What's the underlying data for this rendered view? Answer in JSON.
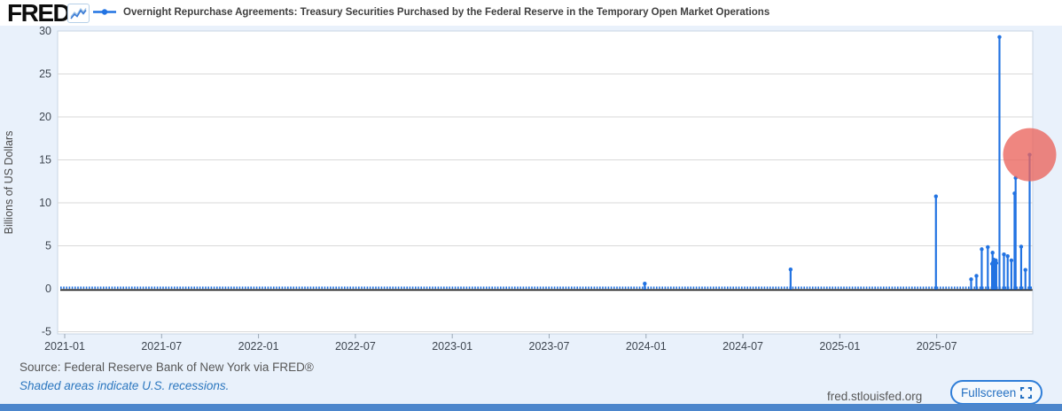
{
  "header": {
    "logo": "FRED",
    "logo_registered": "®",
    "series_title": "Overnight Repurchase Agreements: Treasury Securities Purchased by the Federal Reserve in the Temporary Open Market Operations"
  },
  "footer": {
    "source": "Source: Federal Reserve Bank of New York via FRED®",
    "recessions_note": "Shaded areas indicate U.S. recessions.",
    "site": "fred.stlouisfed.org",
    "fullscreen_label": "Fullscreen"
  },
  "colors": {
    "series_blue": "#2273e2",
    "zero_line": "#1a1a1a",
    "fred_blue": "#2f7ed8",
    "note_blue": "#2c77bf",
    "background": "#e9f1fb",
    "plot_bg": "#ffffff",
    "plot_border": "#c9d5e3",
    "gridline": "#d9d9d9",
    "tick_text": "#3e4650",
    "highlight_circle": "rgba(235,100,92,0.78)",
    "bottom_bar": "#4c86cc"
  },
  "chart_data": {
    "type": "line",
    "title": "Overnight Repurchase Agreements: Treasury Securities Purchased by the Federal Reserve in the Temporary Open Market Operations",
    "xlabel": "",
    "ylabel": "Billions of US Dollars",
    "ylim": [
      -5,
      30
    ],
    "yticks": [
      30,
      25,
      20,
      15,
      10,
      5,
      0,
      -5
    ],
    "xticks": [
      "2021-01",
      "2021-07",
      "2022-01",
      "2022-07",
      "2023-01",
      "2023-07",
      "2024-01",
      "2024-07",
      "2025-01",
      "2025-07"
    ],
    "x_range": [
      "2021-01-01",
      "2025-12-26"
    ],
    "grid": "horizontal-only",
    "legend_position": "top",
    "baseline_value": 0.0,
    "baseline_note": "Daily series; value is ~0 (plotted as dotted band on the black zero line) on all days except the spike dates below.",
    "spikes": [
      {
        "date": "2023-12-29",
        "value": 0.6
      },
      {
        "date": "2024-09-30",
        "value": 2.25
      },
      {
        "date": "2025-06-30",
        "value": 10.75
      },
      {
        "date": "2025-09-05",
        "value": 1.1
      },
      {
        "date": "2025-09-15",
        "value": 1.5
      },
      {
        "date": "2025-09-25",
        "value": 4.6
      },
      {
        "date": "2025-10-06",
        "value": 4.85
      },
      {
        "date": "2025-10-14",
        "value": 2.9
      },
      {
        "date": "2025-10-15",
        "value": 4.2
      },
      {
        "date": "2025-10-16",
        "value": 3.1
      },
      {
        "date": "2025-10-17",
        "value": 3.4
      },
      {
        "date": "2025-10-20",
        "value": 2.8
      },
      {
        "date": "2025-10-21",
        "value": 3.3
      },
      {
        "date": "2025-10-22",
        "value": 3.0
      },
      {
        "date": "2025-10-28",
        "value": 29.3
      },
      {
        "date": "2025-11-06",
        "value": 4.0
      },
      {
        "date": "2025-11-13",
        "value": 3.8
      },
      {
        "date": "2025-11-20",
        "value": 3.3
      },
      {
        "date": "2025-11-26",
        "value": 11.1
      },
      {
        "date": "2025-11-28",
        "value": 12.9
      },
      {
        "date": "2025-12-08",
        "value": 4.9
      },
      {
        "date": "2025-12-16",
        "value": 2.2
      },
      {
        "date": "2025-12-24",
        "value": 15.6
      }
    ],
    "highlight": {
      "date": "2025-12-24",
      "value": 15.6
    }
  }
}
